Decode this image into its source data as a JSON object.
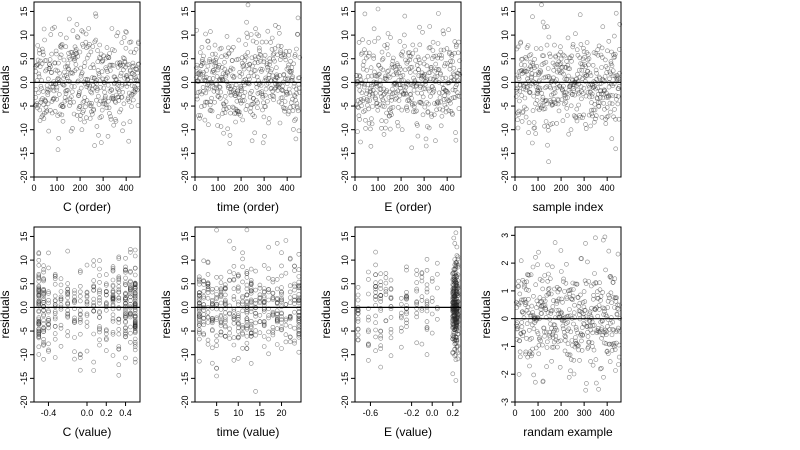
{
  "chart_data": [
    {
      "type": "scatter",
      "xlabel": "C (order)",
      "ylabel": "residuals",
      "xlim": [
        0,
        460
      ],
      "ylim": [
        -20,
        17
      ],
      "xticks": [
        0,
        100,
        200,
        300,
        400
      ],
      "xtick_labels": [
        "0",
        "100",
        "200",
        "300",
        "400"
      ],
      "yticks": [
        -20,
        -15,
        -10,
        -5,
        0,
        5,
        10,
        15
      ],
      "ytick_labels": [
        "-20",
        "-15",
        "-10",
        "-5",
        "0.0",
        "5.0",
        "10",
        "15"
      ],
      "reference_line": 0,
      "marker": "open-circle",
      "n_points": 460,
      "x_distribution": "order",
      "y_distribution": {
        "mean": 0,
        "sd": 5,
        "lo": -18.5,
        "hi": 16.5
      },
      "seed": 11
    },
    {
      "type": "scatter",
      "xlabel": "time (order)",
      "ylabel": "residuals",
      "xlim": [
        0,
        460
      ],
      "ylim": [
        -20,
        17
      ],
      "xticks": [
        0,
        100,
        200,
        300,
        400
      ],
      "xtick_labels": [
        "0",
        "100",
        "200",
        "300",
        "400"
      ],
      "yticks": [
        -20,
        -15,
        -10,
        -5,
        0,
        5,
        10,
        15
      ],
      "ytick_labels": [
        "-20",
        "-15",
        "-10",
        "-5",
        "0.0",
        "5.0",
        "10",
        "15"
      ],
      "reference_line": 0,
      "marker": "open-circle",
      "n_points": 460,
      "x_distribution": "order",
      "y_distribution": {
        "mean": 0,
        "sd": 5,
        "lo": -18.5,
        "hi": 16.5
      },
      "seed": 23
    },
    {
      "type": "scatter",
      "xlabel": "E (order)",
      "ylabel": "residuals",
      "xlim": [
        0,
        460
      ],
      "ylim": [
        -20,
        17
      ],
      "xticks": [
        0,
        100,
        200,
        300,
        400
      ],
      "xtick_labels": [
        "0",
        "100",
        "200",
        "300",
        "400"
      ],
      "yticks": [
        -20,
        -15,
        -10,
        -5,
        0,
        5,
        10,
        15
      ],
      "ytick_labels": [
        "-20",
        "-15",
        "-10",
        "-5",
        "0.0",
        "5.0",
        "10",
        "15"
      ],
      "reference_line": 0,
      "marker": "open-circle",
      "n_points": 460,
      "x_distribution": "order",
      "y_distribution": {
        "mean": 0,
        "sd": 5,
        "lo": -18.5,
        "hi": 16.5
      },
      "seed": 37
    },
    {
      "type": "scatter",
      "xlabel": "sample index",
      "ylabel": "residuals",
      "xlim": [
        0,
        460
      ],
      "ylim": [
        -20,
        17
      ],
      "xticks": [
        0,
        100,
        200,
        300,
        400
      ],
      "xtick_labels": [
        "0",
        "100",
        "200",
        "300",
        "400"
      ],
      "yticks": [
        -20,
        -15,
        -10,
        -5,
        0,
        5,
        10,
        15
      ],
      "ytick_labels": [
        "-20",
        "-15",
        "-10",
        "-5",
        "0.0",
        "5.0",
        "10",
        "15"
      ],
      "reference_line": 0,
      "marker": "open-circle",
      "n_points": 460,
      "x_distribution": "order",
      "y_distribution": {
        "mean": 0,
        "sd": 5,
        "lo": -18.5,
        "hi": 16.5
      },
      "seed": 41
    },
    {
      "type": "scatter",
      "xlabel": "C (value)",
      "ylabel": "residuals",
      "xlim": [
        -0.55,
        0.55
      ],
      "ylim": [
        -20,
        17
      ],
      "xticks": [
        -0.4,
        0.0,
        0.2,
        0.4
      ],
      "xtick_labels": [
        "-0.4",
        "0.0",
        "0.2",
        "0.4"
      ],
      "yticks": [
        -20,
        -15,
        -10,
        -5,
        0,
        5,
        10,
        15
      ],
      "ytick_labels": [
        "-20",
        "-15",
        "-10",
        "-5",
        "0.0",
        "5.0",
        "10",
        "15"
      ],
      "reference_line": 0,
      "marker": "open-circle",
      "n_points": 460,
      "x_distribution": {
        "levels": [
          -0.5,
          -0.45,
          -0.4,
          -0.33,
          -0.27,
          -0.2,
          -0.13,
          -0.07,
          0.0,
          0.07,
          0.13,
          0.2,
          0.27,
          0.33,
          0.4,
          0.45,
          0.5
        ],
        "weights": [
          3,
          2,
          1,
          1,
          1,
          1,
          1,
          1,
          1,
          1,
          1,
          1,
          2,
          2,
          3,
          2,
          4
        ]
      },
      "y_distribution": {
        "mean": 0,
        "sd": 5,
        "lo": -18.5,
        "hi": 16.5
      },
      "seed": 53
    },
    {
      "type": "scatter",
      "xlabel": "time (value)",
      "ylabel": "residuals",
      "xlim": [
        0,
        24.5
      ],
      "ylim": [
        -20,
        17
      ],
      "xticks": [
        5,
        10,
        15,
        20
      ],
      "xtick_labels": [
        "5",
        "10",
        "15",
        "20"
      ],
      "yticks": [
        -20,
        -15,
        -10,
        -5,
        0,
        5,
        10,
        15
      ],
      "ytick_labels": [
        "-20",
        "-15",
        "-10",
        "-5",
        "0.0",
        "5.0",
        "10",
        "15"
      ],
      "reference_line": 0,
      "marker": "open-circle",
      "n_points": 460,
      "x_distribution": {
        "levels": [
          1,
          2,
          3,
          4,
          5,
          6,
          7,
          8,
          9,
          10,
          11,
          12,
          13,
          14,
          15,
          16,
          17,
          18,
          19,
          20,
          21,
          22,
          23,
          24
        ],
        "weights": [
          3,
          2,
          2,
          2,
          2,
          2,
          2,
          2,
          2,
          2,
          2,
          4,
          2,
          2,
          2,
          2,
          2,
          2,
          2,
          2,
          2,
          2,
          2,
          3
        ]
      },
      "y_distribution": {
        "mean": 0,
        "sd": 5,
        "lo": -18.5,
        "hi": 16.5
      },
      "seed": 67
    },
    {
      "type": "scatter",
      "xlabel": "E (value)",
      "ylabel": "residuals",
      "xlim": [
        -0.75,
        0.28
      ],
      "ylim": [
        -20,
        17
      ],
      "xticks": [
        -0.6,
        -0.2,
        0.0,
        0.2
      ],
      "xtick_labels": [
        "-0.6",
        "-0.2",
        "0.0",
        "0.2"
      ],
      "yticks": [
        -20,
        -15,
        -10,
        -5,
        0,
        5,
        10,
        15
      ],
      "ytick_labels": [
        "-20",
        "-15",
        "-10",
        "-5",
        "0.0",
        "5.0",
        "10",
        "15"
      ],
      "reference_line": 0,
      "marker": "open-circle",
      "n_points": 460,
      "x_distribution": {
        "levels": [
          -0.72,
          -0.62,
          -0.55,
          -0.5,
          -0.45,
          -0.4,
          -0.3,
          -0.25,
          -0.15,
          -0.1,
          -0.05,
          0.0,
          0.05,
          0.2,
          0.21,
          0.22,
          0.23,
          0.24,
          0.25
        ],
        "weights": [
          1.5,
          1,
          2,
          1.5,
          1,
          1,
          0.5,
          1,
          1,
          0.5,
          1,
          0.5,
          0.5,
          3,
          4,
          5,
          5,
          4,
          3
        ]
      },
      "y_distribution": {
        "mean": 0,
        "sd": 5,
        "lo": -18.5,
        "hi": 16.5
      },
      "seed": 79
    },
    {
      "type": "scatter",
      "xlabel": "randam example",
      "ylabel": "residuals",
      "xlim": [
        0,
        460
      ],
      "ylim": [
        -3,
        3.3
      ],
      "xticks": [
        0,
        100,
        200,
        300,
        400
      ],
      "xtick_labels": [
        "0",
        "100",
        "200",
        "300",
        "400"
      ],
      "yticks": [
        -3,
        -2,
        -1,
        0,
        1,
        2,
        3
      ],
      "ytick_labels": [
        "-3",
        "-2",
        "-1",
        "0",
        "1",
        "2",
        "3"
      ],
      "reference_line": 0,
      "marker": "open-circle",
      "n_points": 460,
      "x_distribution": "order",
      "y_distribution": {
        "mean": 0,
        "sd": 1,
        "lo": -2.9,
        "hi": 3.2
      },
      "seed": 97
    }
  ]
}
